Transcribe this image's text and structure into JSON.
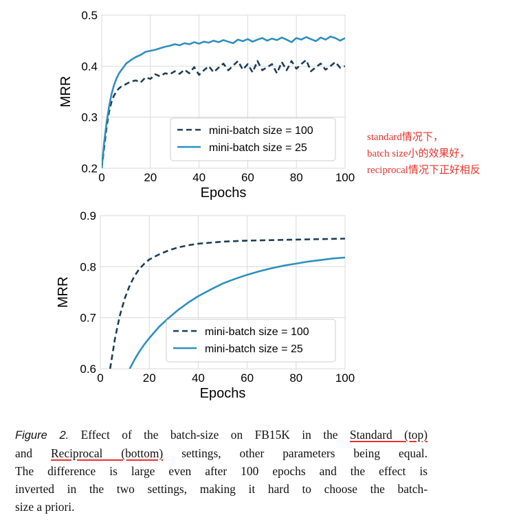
{
  "chart_data": [
    {
      "type": "line",
      "xlabel": "Epochs",
      "ylabel": "MRR",
      "xlim": [
        0,
        100
      ],
      "ylim": [
        0.2,
        0.5
      ],
      "xticks": [
        "0",
        "20",
        "40",
        "60",
        "80",
        "100"
      ],
      "yticks": [
        "0.2",
        "0.3",
        "0.4",
        "0.5"
      ],
      "grid": true,
      "legend_position": "lower-right",
      "series": [
        {
          "name": "mini-batch size = 100",
          "color": "#1b3e58",
          "style": "dashed",
          "x": [
            0,
            1,
            2,
            3,
            4,
            5,
            6,
            7,
            8,
            9,
            10,
            12,
            14,
            16,
            18,
            20,
            22,
            24,
            26,
            28,
            30,
            32,
            34,
            36,
            38,
            40,
            42,
            44,
            46,
            48,
            50,
            52,
            54,
            56,
            58,
            60,
            62,
            64,
            66,
            68,
            70,
            72,
            74,
            76,
            78,
            80,
            82,
            84,
            86,
            88,
            90,
            92,
            94,
            96,
            98,
            100
          ],
          "values": [
            0.2,
            0.24,
            0.28,
            0.31,
            0.33,
            0.342,
            0.35,
            0.356,
            0.36,
            0.362,
            0.365,
            0.37,
            0.372,
            0.368,
            0.378,
            0.375,
            0.384,
            0.38,
            0.386,
            0.384,
            0.39,
            0.385,
            0.393,
            0.386,
            0.398,
            0.383,
            0.392,
            0.4,
            0.388,
            0.397,
            0.405,
            0.392,
            0.401,
            0.41,
            0.393,
            0.404,
            0.388,
            0.41,
            0.392,
            0.398,
            0.404,
            0.386,
            0.408,
            0.392,
            0.41,
            0.395,
            0.404,
            0.412,
            0.39,
            0.398,
            0.405,
            0.393,
            0.4,
            0.408,
            0.397,
            0.4
          ]
        },
        {
          "name": "mini-batch size = 25",
          "color": "#2d8fbd",
          "style": "solid",
          "x": [
            0,
            1,
            2,
            3,
            4,
            5,
            6,
            7,
            8,
            9,
            10,
            12,
            14,
            16,
            18,
            20,
            22,
            24,
            26,
            28,
            30,
            32,
            34,
            36,
            38,
            40,
            42,
            44,
            46,
            48,
            50,
            52,
            54,
            56,
            58,
            60,
            62,
            64,
            66,
            68,
            70,
            72,
            74,
            76,
            78,
            80,
            82,
            84,
            86,
            88,
            90,
            92,
            94,
            96,
            98,
            100
          ],
          "values": [
            0.2,
            0.25,
            0.29,
            0.32,
            0.345,
            0.362,
            0.375,
            0.385,
            0.392,
            0.398,
            0.405,
            0.412,
            0.418,
            0.422,
            0.428,
            0.43,
            0.432,
            0.435,
            0.438,
            0.44,
            0.443,
            0.441,
            0.445,
            0.443,
            0.447,
            0.444,
            0.448,
            0.446,
            0.45,
            0.447,
            0.451,
            0.448,
            0.445,
            0.452,
            0.449,
            0.453,
            0.448,
            0.452,
            0.455,
            0.45,
            0.454,
            0.451,
            0.456,
            0.452,
            0.447,
            0.455,
            0.452,
            0.457,
            0.453,
            0.449,
            0.456,
            0.452,
            0.458,
            0.455,
            0.45,
            0.455
          ]
        }
      ]
    },
    {
      "type": "line",
      "xlabel": "Epochs",
      "ylabel": "MRR",
      "xlim": [
        0,
        100
      ],
      "ylim": [
        0.6,
        0.9
      ],
      "xticks": [
        "0",
        "20",
        "40",
        "60",
        "80",
        "100"
      ],
      "yticks": [
        "0.6",
        "0.7",
        "0.8",
        "0.9"
      ],
      "grid": true,
      "legend_position": "lower-right",
      "series": [
        {
          "name": "mini-batch size = 100",
          "color": "#1b3e58",
          "style": "dashed",
          "x": [
            4,
            6,
            8,
            10,
            12,
            14,
            16,
            18,
            20,
            24,
            28,
            32,
            36,
            40,
            50,
            60,
            70,
            80,
            90,
            100
          ],
          "values": [
            0.6,
            0.66,
            0.705,
            0.738,
            0.763,
            0.782,
            0.796,
            0.806,
            0.814,
            0.824,
            0.832,
            0.838,
            0.842,
            0.845,
            0.849,
            0.851,
            0.852,
            0.853,
            0.854,
            0.855
          ]
        },
        {
          "name": "mini-batch size = 25",
          "color": "#2d8fbd",
          "style": "solid",
          "x": [
            12,
            14,
            16,
            18,
            20,
            24,
            28,
            32,
            36,
            40,
            45,
            50,
            55,
            60,
            65,
            70,
            75,
            80,
            85,
            90,
            95,
            100
          ],
          "values": [
            0.6,
            0.618,
            0.634,
            0.648,
            0.66,
            0.682,
            0.7,
            0.716,
            0.73,
            0.742,
            0.755,
            0.767,
            0.776,
            0.784,
            0.791,
            0.797,
            0.802,
            0.806,
            0.81,
            0.813,
            0.816,
            0.818
          ]
        }
      ]
    }
  ],
  "annotation": {
    "color": "#e8322a",
    "lines": [
      "standard情况下，",
      "batch size小的效果好，",
      "reciprocal情况下正好相反"
    ]
  },
  "caption": {
    "figure_label": "Figure 2.",
    "lines": [
      {
        "before": " Effect of the batch-size on FB15K in the ",
        "underlined": "Standard (top)",
        "after": ""
      },
      {
        "before": "and ",
        "underlined": "Reciprocal (bottom)",
        "after": " settings, other parameters being equal."
      },
      {
        "before": "The difference is large even after 100 epochs and the effect is",
        "underlined": "",
        "after": ""
      },
      {
        "before": "inverted in the two settings, making it hard to choose the batch-",
        "underlined": "",
        "after": ""
      },
      {
        "before": "size a priori.",
        "underlined": "",
        "after": ""
      }
    ]
  }
}
